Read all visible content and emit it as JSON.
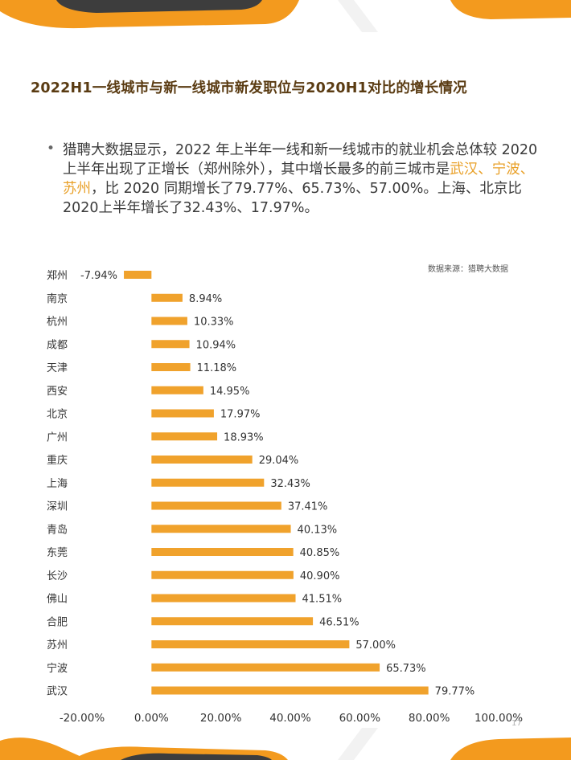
{
  "page": {
    "title": "2022H1一线城市与新一线城市新发职位与2020H1对比的增长情况",
    "bullet": {
      "part1": "猎聘大数据显示，2022 年上半年一线和新一线城市的就业机会总体较 2020 上半年出现了正增长（郑州除外），其中增长最多的前三城市是",
      "highlight": "武汉、宁波、苏州",
      "part2": "，比 2020 同期增长了79.77%、65.73%、57.00%。上海、北京比2020上半年增长了32.43%、17.97%。"
    },
    "source_note": "数据来源：猎聘大数据",
    "page_number": "17"
  },
  "colors": {
    "bar": "#f0a22c",
    "accent": "#e9a12a",
    "title": "#5a3b12",
    "deco_orange": "#f39a1e",
    "deco_dark": "#3d3d3d"
  },
  "chart_data": {
    "type": "bar",
    "orientation": "horizontal",
    "categories": [
      "郑州",
      "南京",
      "杭州",
      "成都",
      "天津",
      "西安",
      "北京",
      "广州",
      "重庆",
      "上海",
      "深圳",
      "青岛",
      "东莞",
      "长沙",
      "佛山",
      "合肥",
      "苏州",
      "宁波",
      "武汉"
    ],
    "values": [
      -7.94,
      8.94,
      10.33,
      10.94,
      11.18,
      14.95,
      17.97,
      18.93,
      29.04,
      32.43,
      37.41,
      40.13,
      40.85,
      40.9,
      41.51,
      46.51,
      57.0,
      65.73,
      79.77
    ],
    "value_labels": [
      "-7.94%",
      "8.94%",
      "10.33%",
      "10.94%",
      "11.18%",
      "14.95%",
      "17.97%",
      "18.93%",
      "29.04%",
      "32.43%",
      "37.41%",
      "40.13%",
      "40.85%",
      "40.90%",
      "41.51%",
      "46.51%",
      "57.00%",
      "65.73%",
      "79.77%"
    ],
    "xlim": [
      -20,
      100
    ],
    "x_ticks": [
      -20,
      0,
      20,
      40,
      60,
      80,
      100
    ],
    "x_tick_labels": [
      "-20.00%",
      "0.00%",
      "20.00%",
      "40.00%",
      "60.00%",
      "80.00%",
      "100.00%"
    ],
    "grid": false,
    "legend": "none"
  }
}
